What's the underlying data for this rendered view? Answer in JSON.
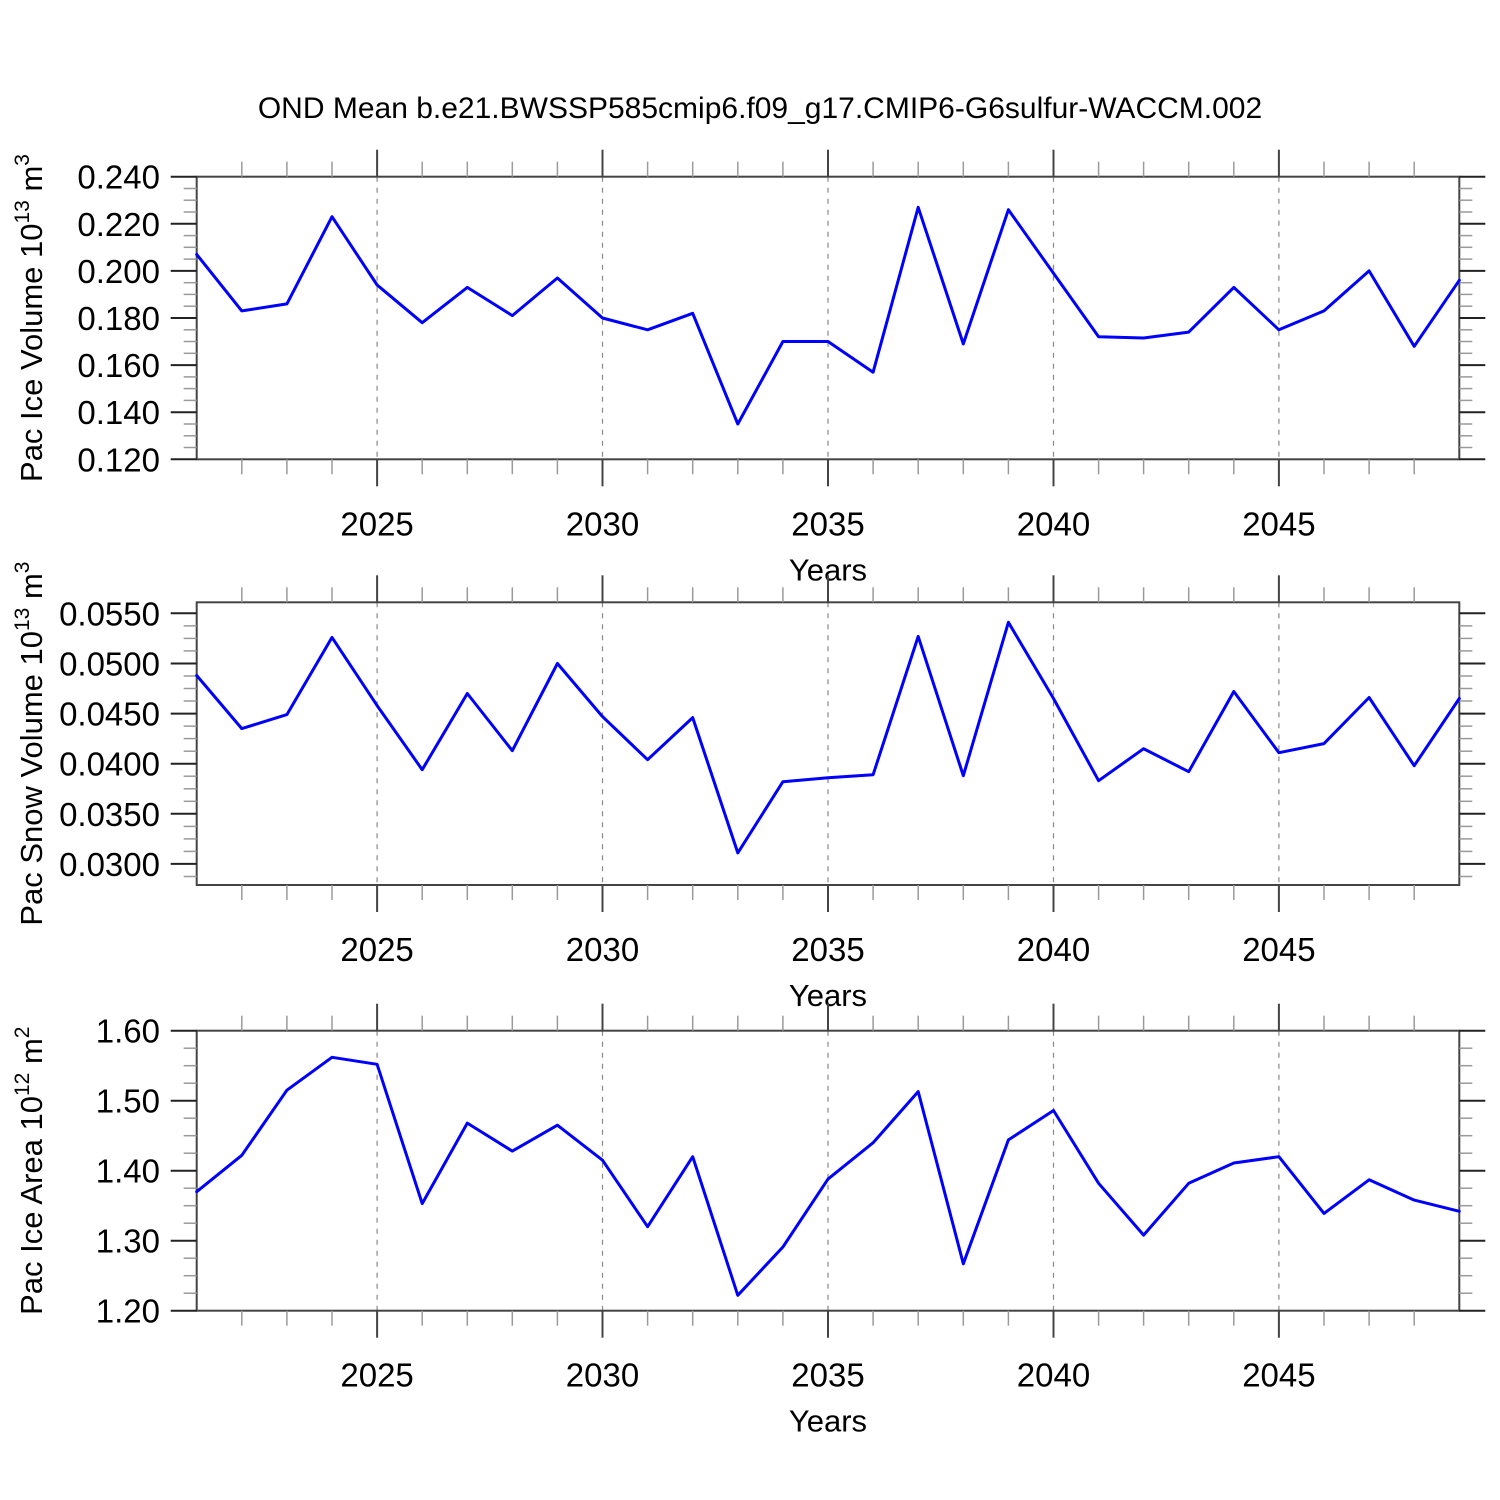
{
  "title": "OND Mean b.e21.BWSSP585cmip6.f09_g17.CMIP6-G6sulfur-WACCM.002",
  "style": {
    "line_color": "#0000ff",
    "grid_color": "#888888",
    "frame_color": "#444444",
    "major_tick_color": "#222222",
    "minor_tick_color": "#9a9a9a",
    "text_color": "#000000",
    "background": "#ffffff"
  },
  "axis": {
    "xlabel": "Years",
    "xtick_years": [
      2025,
      2030,
      2035,
      2040,
      2045
    ],
    "xtick_labels": [
      "2025",
      "2030",
      "2035",
      "2040",
      "2045"
    ],
    "xlim": [
      2021,
      2049
    ]
  },
  "chart_data": [
    {
      "type": "line",
      "name": "pac-ice-volume",
      "ylabel_text": "Pac Ice Volume 10^13 m^3",
      "ylabel_parts": [
        {
          "t": "Pac Ice Volume 10"
        },
        {
          "t": "13",
          "sup": true
        },
        {
          "t": " m"
        },
        {
          "t": "3",
          "sup": true
        }
      ],
      "xlabel": "Years",
      "x": [
        2021,
        2022,
        2023,
        2024,
        2025,
        2026,
        2027,
        2028,
        2029,
        2030,
        2031,
        2032,
        2033,
        2034,
        2035,
        2036,
        2037,
        2038,
        2039,
        2040,
        2041,
        2042,
        2043,
        2044,
        2045,
        2046,
        2047,
        2048,
        2049
      ],
      "values": [
        0.207,
        0.183,
        0.186,
        0.223,
        0.194,
        0.178,
        0.193,
        0.181,
        0.197,
        0.18,
        0.175,
        0.182,
        0.135,
        0.17,
        0.17,
        0.157,
        0.227,
        0.169,
        0.226,
        0.199,
        0.172,
        0.1715,
        0.174,
        0.193,
        0.175,
        0.183,
        0.2,
        0.168,
        0.196
      ],
      "ylim": [
        0.12,
        0.24
      ],
      "yticks": [
        0.24,
        0.22,
        0.2,
        0.18,
        0.16,
        0.14,
        0.12
      ],
      "ytick_labels": [
        "0.240",
        "0.220",
        "0.200",
        "0.180",
        "0.160",
        "0.140",
        "0.120"
      ],
      "yminor_step": 0.005,
      "grid_x": [
        2025,
        2030,
        2035,
        2040,
        2045
      ],
      "grid": true,
      "legend": null
    },
    {
      "type": "line",
      "name": "pac-snow-volume",
      "ylabel_text": "Pac Snow Volume 10^13 m^3",
      "ylabel_parts": [
        {
          "t": "Pac Snow Volume 10"
        },
        {
          "t": "13",
          "sup": true
        },
        {
          "t": " m"
        },
        {
          "t": "3",
          "sup": true
        }
      ],
      "xlabel": "Years",
      "x": [
        2021,
        2022,
        2023,
        2024,
        2025,
        2026,
        2027,
        2028,
        2029,
        2030,
        2031,
        2032,
        2033,
        2034,
        2035,
        2036,
        2037,
        2038,
        2039,
        2040,
        2041,
        2042,
        2043,
        2044,
        2045,
        2046,
        2047,
        2048,
        2049
      ],
      "values": [
        0.0488,
        0.0435,
        0.0449,
        0.0526,
        0.0458,
        0.0394,
        0.047,
        0.0413,
        0.05,
        0.0447,
        0.0404,
        0.0446,
        0.0311,
        0.0382,
        0.0386,
        0.0389,
        0.0527,
        0.0388,
        0.0541,
        0.0465,
        0.0383,
        0.0415,
        0.0392,
        0.0472,
        0.0411,
        0.042,
        0.0466,
        0.0398,
        0.0465
      ],
      "ylim": [
        0.0279,
        0.0561
      ],
      "yticks": [
        0.055,
        0.05,
        0.045,
        0.04,
        0.035,
        0.03
      ],
      "ytick_labels": [
        "0.0550",
        "0.0500",
        "0.0450",
        "0.0400",
        "0.0350",
        "0.0300"
      ],
      "yminor_step": 0.00125,
      "grid_x": [
        2025,
        2030,
        2035,
        2040,
        2045
      ],
      "grid": true,
      "legend": null
    },
    {
      "type": "line",
      "name": "pac-ice-area",
      "ylabel_text": "Pac Ice Area 10^12 m^2",
      "ylabel_parts": [
        {
          "t": "Pac Ice Area 10"
        },
        {
          "t": "12",
          "sup": true
        },
        {
          "t": " m"
        },
        {
          "t": "2",
          "sup": true
        }
      ],
      "xlabel": "Years",
      "x": [
        2021,
        2022,
        2023,
        2024,
        2025,
        2026,
        2027,
        2028,
        2029,
        2030,
        2031,
        2032,
        2033,
        2034,
        2035,
        2036,
        2037,
        2038,
        2039,
        2040,
        2041,
        2042,
        2043,
        2044,
        2045,
        2046,
        2047,
        2048,
        2049
      ],
      "values": [
        1.37,
        1.422,
        1.515,
        1.562,
        1.552,
        1.353,
        1.468,
        1.428,
        1.465,
        1.415,
        1.32,
        1.42,
        1.222,
        1.291,
        1.388,
        1.44,
        1.513,
        1.267,
        1.444,
        1.486,
        1.382,
        1.308,
        1.382,
        1.411,
        1.42,
        1.339,
        1.387,
        1.358,
        1.342
      ],
      "ylim": [
        1.2,
        1.6
      ],
      "yticks": [
        1.6,
        1.5,
        1.4,
        1.3,
        1.2
      ],
      "ytick_labels": [
        "1.60",
        "1.50",
        "1.40",
        "1.30",
        "1.20"
      ],
      "yminor_step": 0.025,
      "grid_x": [
        2025,
        2030,
        2035,
        2040,
        2045
      ],
      "grid": true,
      "legend": null
    }
  ]
}
